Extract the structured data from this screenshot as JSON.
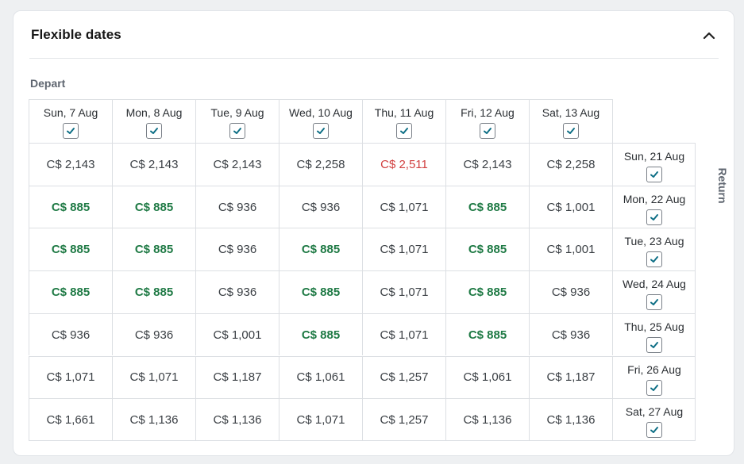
{
  "panel": {
    "title": "Flexible dates",
    "depart_label": "Depart",
    "return_label": "Return"
  },
  "depart_dates": [
    {
      "label": "Sun, 7 Aug",
      "checked": true
    },
    {
      "label": "Mon, 8 Aug",
      "checked": true
    },
    {
      "label": "Tue, 9 Aug",
      "checked": true
    },
    {
      "label": "Wed, 10 Aug",
      "checked": true
    },
    {
      "label": "Thu, 11 Aug",
      "checked": true
    },
    {
      "label": "Fri, 12 Aug",
      "checked": true
    },
    {
      "label": "Sat, 13 Aug",
      "checked": true
    }
  ],
  "return_dates": [
    {
      "label": "Sun, 21 Aug",
      "checked": true
    },
    {
      "label": "Mon, 22 Aug",
      "checked": true
    },
    {
      "label": "Tue, 23 Aug",
      "checked": true
    },
    {
      "label": "Wed, 24 Aug",
      "checked": true
    },
    {
      "label": "Thu, 25 Aug",
      "checked": true
    },
    {
      "label": "Fri, 26 Aug",
      "checked": true
    },
    {
      "label": "Sat, 27 Aug",
      "checked": true
    }
  ],
  "prices": [
    [
      "C$ 2,143",
      "C$ 2,143",
      "C$ 2,143",
      "C$ 2,258",
      "C$ 2,511",
      "C$ 2,143",
      "C$ 2,258"
    ],
    [
      "C$ 885",
      "C$ 885",
      "C$ 936",
      "C$ 936",
      "C$ 1,071",
      "C$ 885",
      "C$ 1,001"
    ],
    [
      "C$ 885",
      "C$ 885",
      "C$ 936",
      "C$ 885",
      "C$ 1,071",
      "C$ 885",
      "C$ 1,001"
    ],
    [
      "C$ 885",
      "C$ 885",
      "C$ 936",
      "C$ 885",
      "C$ 1,071",
      "C$ 885",
      "C$ 936"
    ],
    [
      "C$ 936",
      "C$ 936",
      "C$ 1,001",
      "C$ 885",
      "C$ 1,071",
      "C$ 885",
      "C$ 936"
    ],
    [
      "C$ 1,071",
      "C$ 1,071",
      "C$ 1,187",
      "C$ 1,061",
      "C$ 1,257",
      "C$ 1,061",
      "C$ 1,187"
    ],
    [
      "C$ 1,661",
      "C$ 1,136",
      "C$ 1,136",
      "C$ 1,071",
      "C$ 1,257",
      "C$ 1,136",
      "C$ 1,136"
    ]
  ],
  "price_levels": [
    [
      "normal",
      "normal",
      "normal",
      "normal",
      "high",
      "normal",
      "normal"
    ],
    [
      "low",
      "low",
      "normal",
      "normal",
      "normal",
      "low",
      "normal"
    ],
    [
      "low",
      "low",
      "normal",
      "low",
      "normal",
      "low",
      "normal"
    ],
    [
      "low",
      "low",
      "normal",
      "low",
      "normal",
      "low",
      "normal"
    ],
    [
      "normal",
      "normal",
      "normal",
      "low",
      "normal",
      "low",
      "normal"
    ],
    [
      "normal",
      "normal",
      "normal",
      "normal",
      "normal",
      "normal",
      "normal"
    ],
    [
      "normal",
      "normal",
      "normal",
      "normal",
      "normal",
      "normal",
      "normal"
    ]
  ],
  "colors": {
    "low_price": "#1f7a45",
    "high_price": "#d13f3f",
    "checkmark": "#0e6f86"
  },
  "icons": {
    "collapse": "chevron-up-icon",
    "checkbox": "checkmark-icon"
  }
}
